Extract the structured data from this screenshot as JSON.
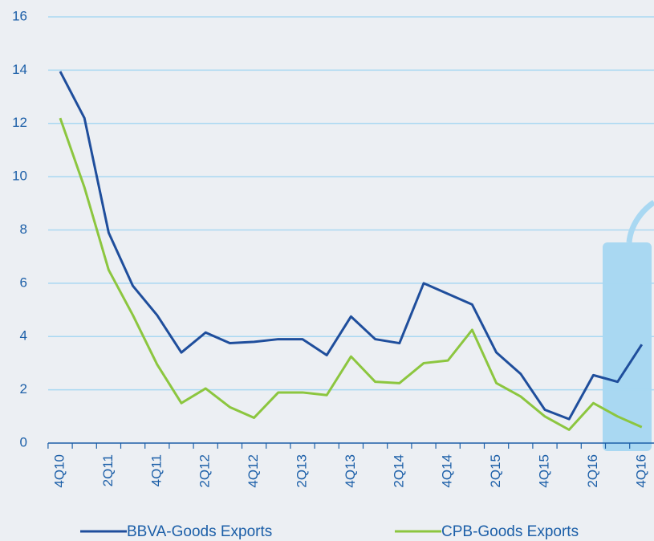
{
  "chart_data": {
    "type": "line",
    "categories": [
      "4Q10",
      null,
      "2Q11",
      null,
      "4Q11",
      null,
      "2Q12",
      null,
      "4Q12",
      null,
      "2Q13",
      null,
      "4Q13",
      null,
      "2Q14",
      null,
      "4Q14",
      null,
      "2Q15",
      null,
      "4Q15",
      null,
      "2Q16",
      null,
      "4Q16"
    ],
    "series": [
      {
        "name": "BBVA-Goods Exports",
        "color": "#1f4e9c",
        "values": [
          13.95,
          12.2,
          7.9,
          5.9,
          4.8,
          3.4,
          4.15,
          3.75,
          3.8,
          3.9,
          3.9,
          3.3,
          4.75,
          3.9,
          3.75,
          6.0,
          5.6,
          5.2,
          3.4,
          2.6,
          1.25,
          0.9,
          2.55,
          2.3,
          3.7
        ]
      },
      {
        "name": "CPB-Goods Exports",
        "color": "#8cc63f",
        "values": [
          12.2,
          9.6,
          6.5,
          4.8,
          2.95,
          1.5,
          2.05,
          1.35,
          0.95,
          1.9,
          1.9,
          1.8,
          3.25,
          2.3,
          2.25,
          3.0,
          3.1,
          4.25,
          2.25,
          1.75,
          1.0,
          0.5,
          1.5,
          1.0,
          0.6
        ]
      }
    ],
    "ylim": [
      0,
      16
    ],
    "yticks": [
      0,
      2,
      4,
      6,
      8,
      10,
      12,
      14,
      16
    ],
    "grid": true,
    "legend": "bottom"
  }
}
